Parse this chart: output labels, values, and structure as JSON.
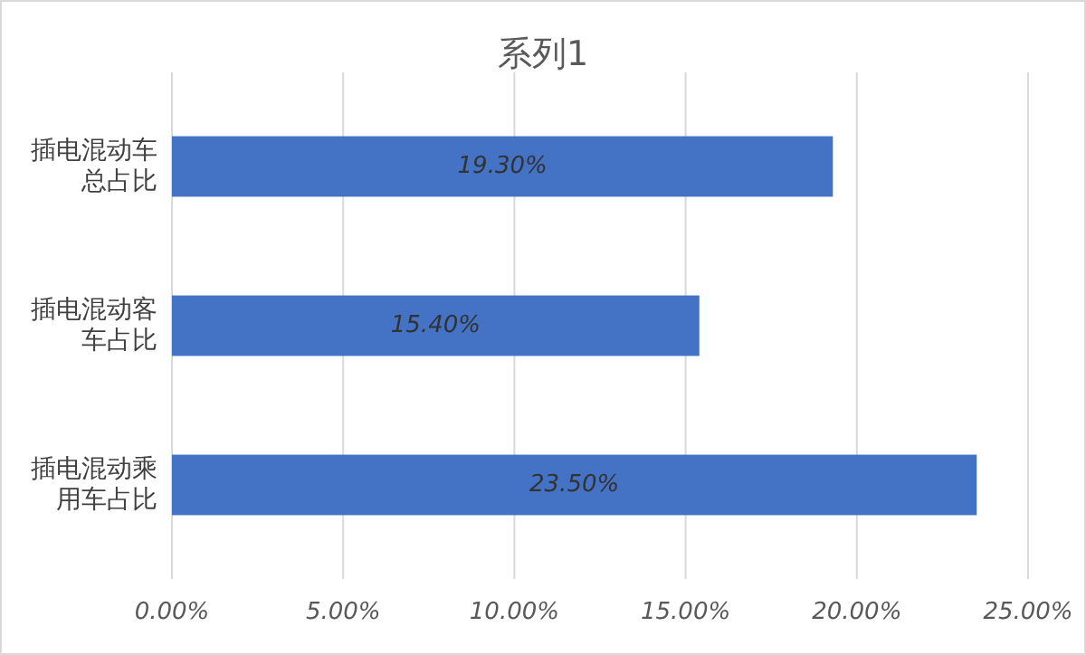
{
  "chart_data": {
    "type": "bar",
    "orientation": "horizontal",
    "title": "系列1",
    "categories": [
      "插电混动车总占比",
      "插电混动客车占比",
      "插电混动乘用车占比"
    ],
    "values": [
      19.3,
      15.4,
      23.5
    ],
    "value_labels": [
      "19.30%",
      "15.40%",
      "23.50%"
    ],
    "color": "#4472c4",
    "xlim": [
      0,
      25
    ],
    "xticks": [
      {
        "value": 0,
        "label": "0.00%"
      },
      {
        "value": 5,
        "label": "5.00%"
      },
      {
        "value": 10,
        "label": "10.00%"
      },
      {
        "value": 15,
        "label": "15.00%"
      },
      {
        "value": 20,
        "label": "20.00%"
      },
      {
        "value": 25,
        "label": "25.00%"
      }
    ],
    "grid": "x"
  }
}
